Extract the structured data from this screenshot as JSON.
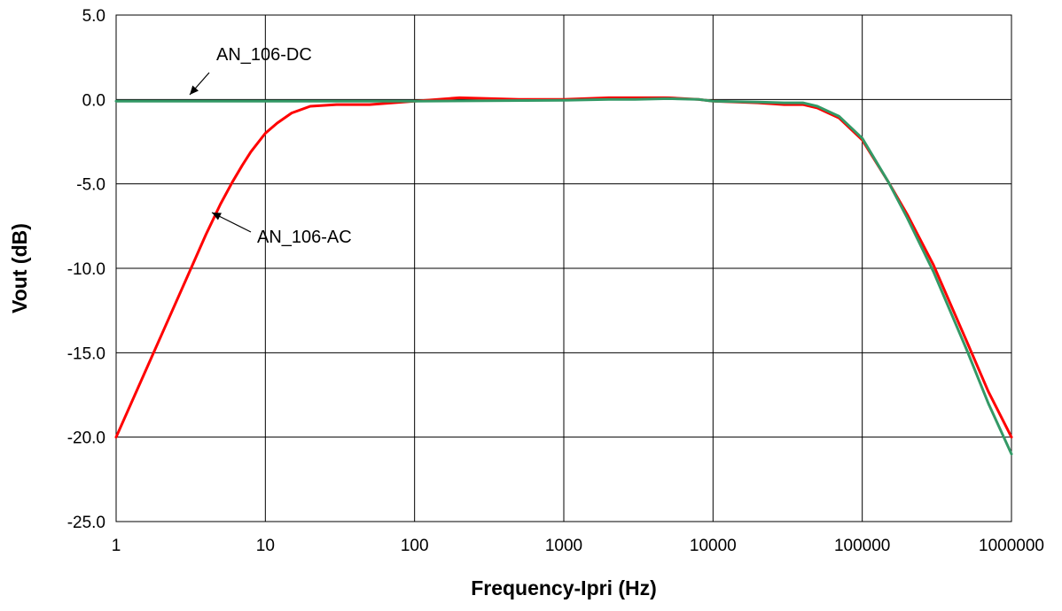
{
  "chart_data": {
    "type": "line",
    "xlabel": "Frequency-Ipri (Hz)",
    "ylabel": "Vout (dB)",
    "x_scale": "log",
    "xlim": [
      1,
      1000000
    ],
    "ylim": [
      -25,
      5
    ],
    "x_ticks": [
      1,
      10,
      100,
      1000,
      10000,
      100000,
      1000000
    ],
    "x_tick_labels": [
      "1",
      "10",
      "100",
      "1000",
      "10000",
      "100000",
      "1000000"
    ],
    "y_ticks": [
      5,
      0,
      -5,
      -10,
      -15,
      -20,
      -25
    ],
    "y_tick_labels": [
      "5.0",
      "0.0",
      "-5.0",
      "-10.0",
      "-15.0",
      "-20.0",
      "-25.0"
    ],
    "grid": true,
    "series": [
      {
        "name": "AN_106-AC",
        "color": "#ff0000",
        "x": [
          1,
          1.5,
          2,
          3,
          4,
          5,
          6,
          7,
          8,
          10,
          12,
          15,
          20,
          30,
          50,
          100,
          200,
          500,
          1000,
          2000,
          3000,
          5000,
          8000,
          10000,
          20000,
          30000,
          40000,
          50000,
          70000,
          100000,
          150000,
          200000,
          300000,
          500000,
          700000,
          1000000
        ],
        "y": [
          -20.0,
          -16.5,
          -14.0,
          -10.5,
          -8.0,
          -6.2,
          -4.9,
          -3.9,
          -3.1,
          -2.0,
          -1.4,
          -0.8,
          -0.4,
          -0.3,
          -0.3,
          -0.1,
          0.1,
          0.0,
          0.0,
          0.1,
          0.1,
          0.1,
          0.0,
          -0.1,
          -0.2,
          -0.3,
          -0.3,
          -0.5,
          -1.1,
          -2.4,
          -4.9,
          -6.8,
          -9.8,
          -14.3,
          -17.3,
          -20.0
        ]
      },
      {
        "name": "AN_106-DC",
        "color": "#339966",
        "x": [
          1,
          10,
          100,
          1000,
          2000,
          3000,
          5000,
          8000,
          10000,
          20000,
          30000,
          40000,
          50000,
          70000,
          100000,
          150000,
          200000,
          300000,
          500000,
          700000,
          1000000
        ],
        "y": [
          -0.1,
          -0.1,
          -0.1,
          -0.05,
          0.0,
          0.0,
          0.05,
          0.0,
          -0.1,
          -0.15,
          -0.2,
          -0.2,
          -0.4,
          -1.0,
          -2.3,
          -4.9,
          -7.0,
          -10.2,
          -14.8,
          -18.0,
          -21.0
        ]
      }
    ],
    "annotations": [
      {
        "text": "AN_106-DC",
        "target_series": "AN_106-DC"
      },
      {
        "text": "AN_106-AC",
        "target_series": "AN_106-AC"
      }
    ]
  }
}
